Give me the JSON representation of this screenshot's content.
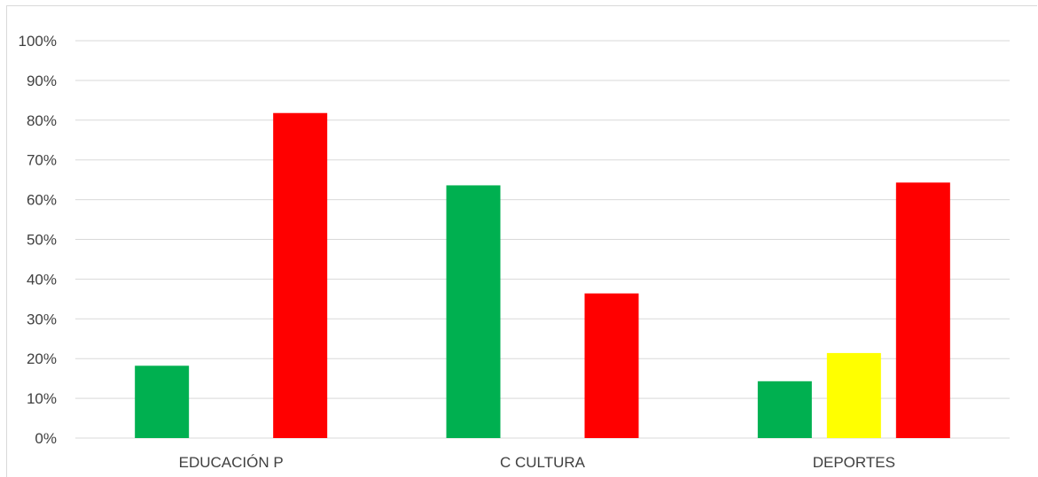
{
  "chart_data": {
    "type": "bar",
    "categories": [
      "EDUCACIÓN P",
      "C CULTURA",
      "DEPORTES"
    ],
    "series": [
      {
        "values": [
          18.2,
          63.6,
          14.3
        ],
        "color": "#00b050"
      },
      {
        "values": [
          0,
          0,
          21.4
        ],
        "color": "#ffff00"
      },
      {
        "values": [
          81.8,
          36.4,
          64.3
        ],
        "color": "#ff0000"
      }
    ],
    "ylim": [
      0,
      100
    ],
    "yticks": [
      0,
      10,
      20,
      30,
      40,
      50,
      60,
      70,
      80,
      90,
      100
    ],
    "ytick_labels": [
      "0%",
      "10%",
      "20%",
      "30%",
      "40%",
      "50%",
      "60%",
      "70%",
      "80%",
      "90%",
      "100%"
    ],
    "grid": true,
    "legend": "none",
    "title": "",
    "xlabel": "",
    "ylabel": ""
  }
}
